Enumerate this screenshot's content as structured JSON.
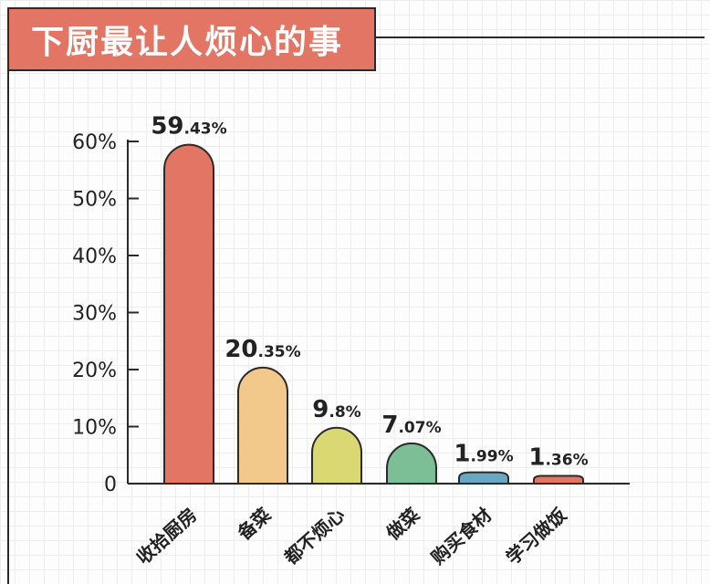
{
  "chart_data": {
    "type": "bar",
    "title": "下厨最让人烦心的事",
    "categories": [
      "收拾厨房",
      "备菜",
      "都不烦心",
      "做菜",
      "购买食材",
      "学习做饭"
    ],
    "values": [
      59.43,
      20.35,
      9.8,
      7.07,
      1.99,
      1.36
    ],
    "value_labels": [
      {
        "major": "59",
        "minor": ".43%"
      },
      {
        "major": "20",
        "minor": ".35%"
      },
      {
        "major": "9",
        "minor": ".8%"
      },
      {
        "major": "7",
        "minor": ".07%"
      },
      {
        "major": "1",
        "minor": ".99%"
      },
      {
        "major": "1",
        "minor": ".36%"
      }
    ],
    "colors": [
      "#e27564",
      "#f2c98a",
      "#d9d873",
      "#7cbf96",
      "#6aa7c2",
      "#e27564"
    ],
    "ylim": [
      0,
      60
    ],
    "yticks": [
      "0",
      "10%",
      "20%",
      "30%",
      "40%",
      "50%",
      "60%"
    ],
    "grid": true,
    "xlabel": "",
    "ylabel": ""
  }
}
